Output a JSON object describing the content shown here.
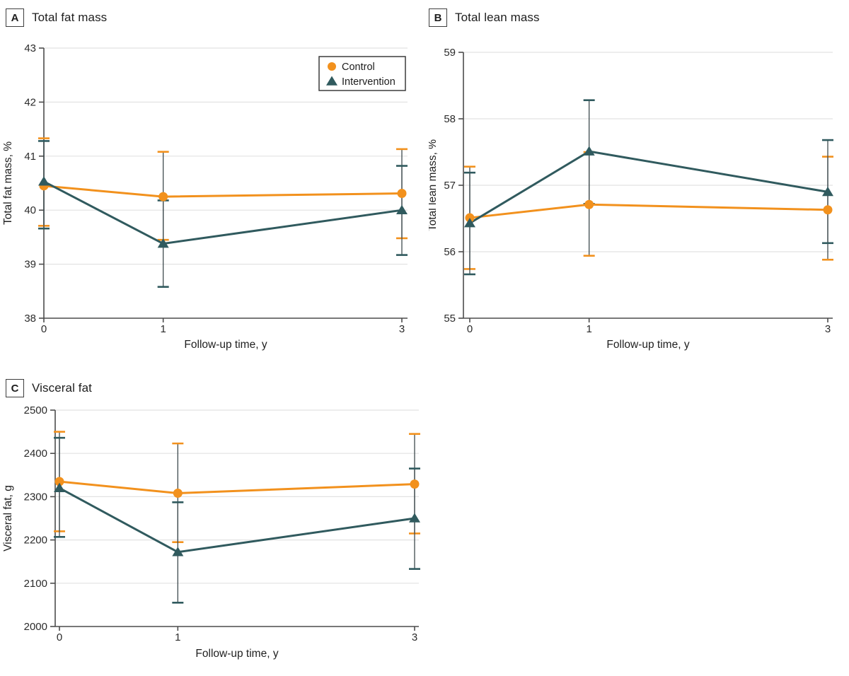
{
  "figure": {
    "background": "#ffffff",
    "colors": {
      "control": "#F2911D",
      "intervention": "#305A5E",
      "error_line": "#3F4B4F",
      "grid": "#E2E2E2",
      "axis": "#4C4C4C",
      "tick_text": "#2B2B2B",
      "label_text": "#1F1F1F"
    },
    "panels": [
      {
        "badge": "A",
        "title": "Total fat mass"
      },
      {
        "badge": "B",
        "title": "Total lean mass"
      },
      {
        "badge": "C",
        "title": "Visceral fat"
      }
    ],
    "legend": {
      "items": [
        {
          "label": "Control",
          "marker": "circle-icon",
          "color": "#F2911D"
        },
        {
          "label": "Intervention",
          "marker": "triangle-icon",
          "color": "#305A5E"
        }
      ]
    }
  },
  "chart_data": [
    {
      "type": "line",
      "panel": "A",
      "title": "Total fat mass",
      "xlabel": "Follow-up time, y",
      "ylabel": "Total fat mass, %",
      "x": [
        0,
        1,
        3
      ],
      "xticks": [
        0,
        1,
        3
      ],
      "ylim": [
        38,
        43
      ],
      "yticks": [
        38,
        39,
        40,
        41,
        42,
        43
      ],
      "grid": true,
      "legend": true,
      "legend_position": "top-right",
      "series": [
        {
          "name": "Control",
          "marker": "circle",
          "color": "#F2911D",
          "values": [
            40.45,
            40.25,
            40.31
          ],
          "ci_lo": [
            39.71,
            39.45,
            39.48
          ],
          "ci_hi": [
            41.33,
            41.08,
            41.13
          ]
        },
        {
          "name": "Intervention",
          "marker": "triangle",
          "color": "#305A5E",
          "values": [
            40.53,
            39.38,
            40.0
          ],
          "ci_lo": [
            39.66,
            38.58,
            39.17
          ],
          "ci_hi": [
            41.28,
            40.18,
            40.82
          ]
        }
      ]
    },
    {
      "type": "line",
      "panel": "B",
      "title": "Total lean mass",
      "xlabel": "Follow-up time, y",
      "ylabel": "Total lean mass, %",
      "x": [
        0,
        1,
        3
      ],
      "xticks": [
        0,
        1,
        3
      ],
      "ylim": [
        55,
        59
      ],
      "yticks": [
        55,
        56,
        57,
        58,
        59
      ],
      "grid": true,
      "legend": false,
      "series": [
        {
          "name": "Control",
          "marker": "circle",
          "color": "#F2911D",
          "values": [
            56.51,
            56.71,
            56.63
          ],
          "ci_lo": [
            55.74,
            55.94,
            55.88
          ],
          "ci_hi": [
            57.28,
            57.5,
            57.43
          ]
        },
        {
          "name": "Intervention",
          "marker": "triangle",
          "color": "#305A5E",
          "values": [
            56.43,
            57.51,
            56.9
          ],
          "ci_lo": [
            55.66,
            56.72,
            56.13
          ],
          "ci_hi": [
            57.19,
            58.28,
            57.68
          ]
        }
      ]
    },
    {
      "type": "line",
      "panel": "C",
      "title": "Visceral fat",
      "xlabel": "Follow-up time, y",
      "ylabel": "Visceral fat, g",
      "x": [
        0,
        1,
        3
      ],
      "xticks": [
        0,
        1,
        3
      ],
      "ylim": [
        2000,
        2500
      ],
      "yticks": [
        2000,
        2100,
        2200,
        2300,
        2400,
        2500
      ],
      "grid": true,
      "legend": false,
      "series": [
        {
          "name": "Control",
          "marker": "circle",
          "color": "#F2911D",
          "values": [
            2335,
            2308,
            2329
          ],
          "ci_lo": [
            2220,
            2195,
            2215
          ],
          "ci_hi": [
            2450,
            2423,
            2445
          ]
        },
        {
          "name": "Intervention",
          "marker": "triangle",
          "color": "#305A5E",
          "values": [
            2320,
            2172,
            2250
          ],
          "ci_lo": [
            2207,
            2055,
            2133
          ],
          "ci_hi": [
            2436,
            2287,
            2365
          ]
        }
      ]
    }
  ]
}
